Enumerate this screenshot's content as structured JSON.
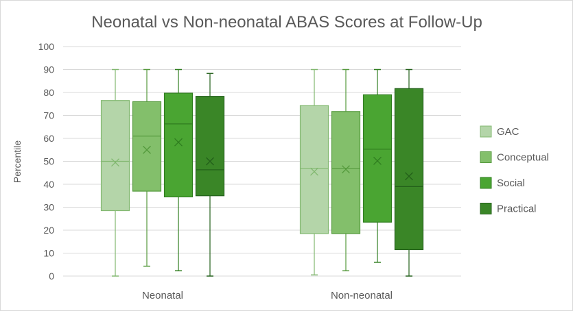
{
  "chart_data": {
    "type": "box",
    "title": "Neonatal vs Non-neonatal ABAS Scores at Follow-Up",
    "xlabel": "",
    "ylabel": "Percentile",
    "ylim": [
      0,
      100
    ],
    "yticks": [
      0,
      10,
      20,
      30,
      40,
      50,
      60,
      70,
      80,
      90,
      100
    ],
    "grid": true,
    "legend_position": "right",
    "categories": [
      "Neonatal",
      "Non-neonatal"
    ],
    "series": [
      {
        "name": "GAC",
        "color": "#b4d5a9",
        "stroke": "#82b870",
        "boxes": [
          {
            "min": 0,
            "q1": 28.5,
            "median": 50,
            "mean": 49.5,
            "q3": 76.5,
            "max": 90
          },
          {
            "min": 0.5,
            "q1": 18.5,
            "median": 47,
            "mean": 45.5,
            "q3": 74.3,
            "max": 90
          }
        ]
      },
      {
        "name": "Conceptual",
        "color": "#83bf6b",
        "stroke": "#559a3d",
        "boxes": [
          {
            "min": 4.3,
            "q1": 37,
            "median": 61,
            "mean": 55,
            "q3": 76,
            "max": 90
          },
          {
            "min": 2.3,
            "q1": 18.5,
            "median": 47,
            "mean": 46.5,
            "q3": 71.7,
            "max": 90
          }
        ]
      },
      {
        "name": "Social",
        "color": "#4aa532",
        "stroke": "#2f7d1f",
        "boxes": [
          {
            "min": 2.3,
            "q1": 34.5,
            "median": 66.3,
            "mean": 58.3,
            "q3": 79.7,
            "max": 90
          },
          {
            "min": 6,
            "q1": 23.5,
            "median": 55.3,
            "mean": 50.2,
            "q3": 79,
            "max": 90
          }
        ]
      },
      {
        "name": "Practical",
        "color": "#3a8627",
        "stroke": "#23601a",
        "boxes": [
          {
            "min": 0,
            "q1": 35,
            "median": 46.3,
            "mean": 50,
            "q3": 78.3,
            "max": 88.3
          },
          {
            "min": 0,
            "q1": 11.5,
            "median": 39,
            "mean": 43.5,
            "q3": 81.7,
            "max": 90
          }
        ]
      }
    ]
  }
}
